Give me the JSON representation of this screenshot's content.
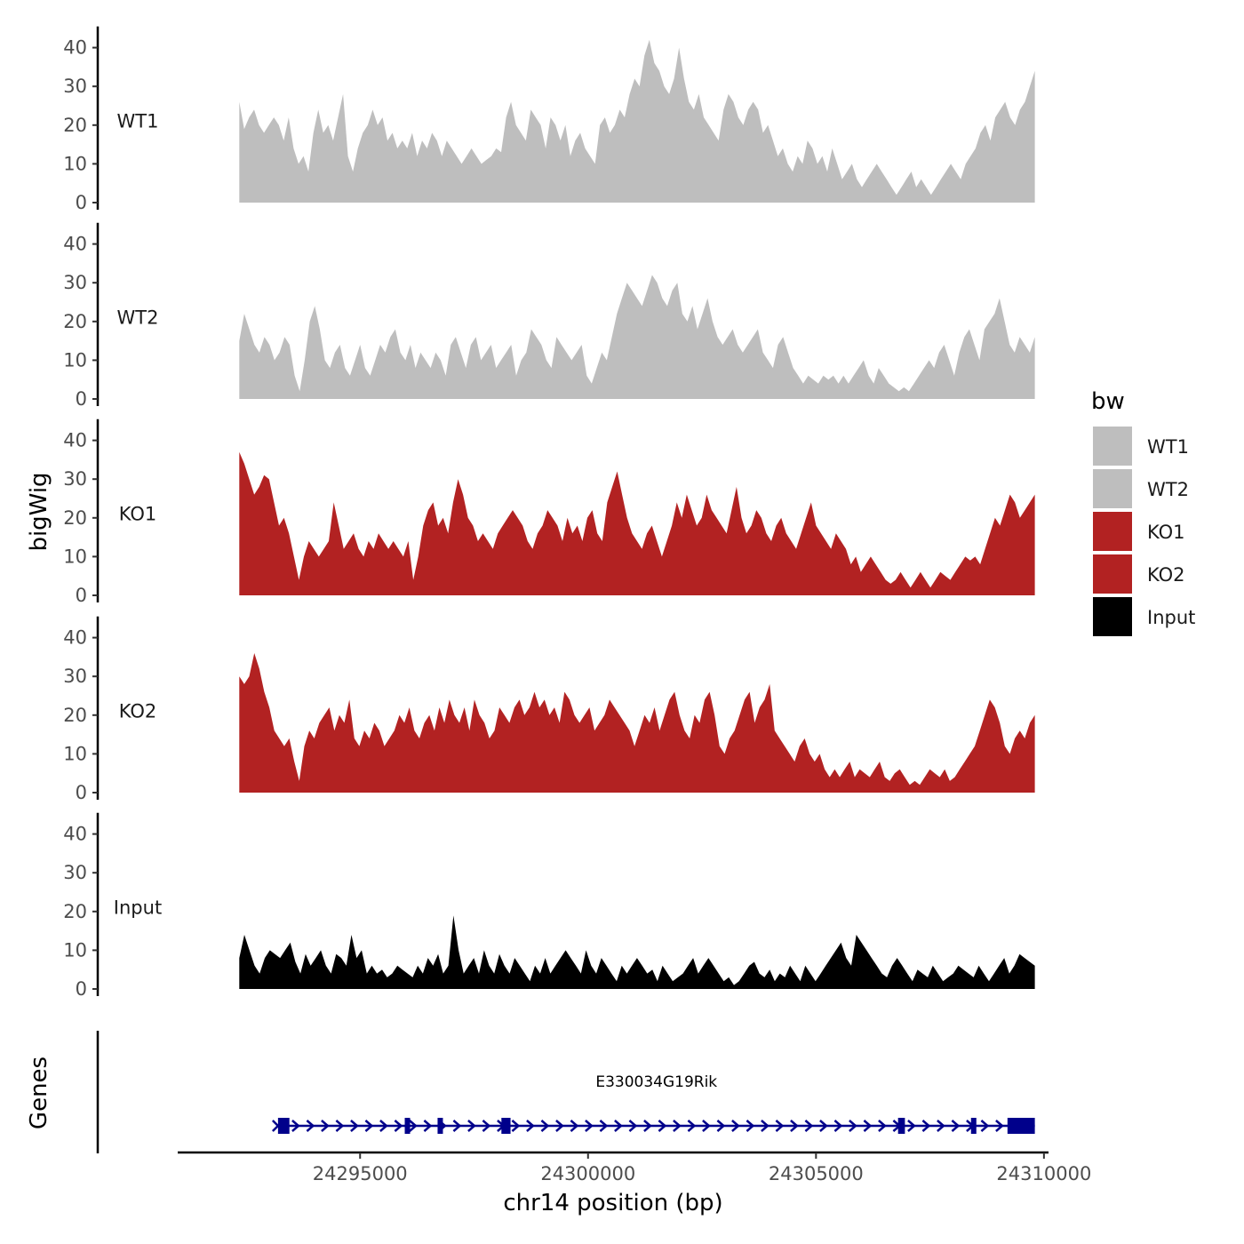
{
  "chart_data": {
    "type": "area",
    "x_axis": {
      "title": "chr14 position (bp)",
      "range": [
        24291000,
        24310100
      ],
      "ticks": [
        24295000,
        24300000,
        24305000,
        24310000
      ],
      "tick_labels": [
        "24295000",
        "24300000",
        "24305000",
        "24310000"
      ]
    },
    "y_axis": {
      "title": "bigWig",
      "range": [
        0,
        45
      ],
      "ticks": [
        0,
        10,
        20,
        30,
        40
      ],
      "tick_labels": [
        "0",
        "10",
        "20",
        "30",
        "40"
      ]
    },
    "tracks_start": 24292350,
    "tracks_end": 24309800,
    "series": [
      {
        "name": "WT1",
        "color": "#bebebe",
        "values": [
          26,
          19,
          22,
          24,
          20,
          18,
          20,
          22,
          20,
          16,
          22,
          14,
          10,
          12,
          8,
          18,
          24,
          18,
          20,
          16,
          22,
          28,
          12,
          8,
          14,
          18,
          20,
          24,
          20,
          22,
          16,
          18,
          14,
          16,
          14,
          18,
          12,
          16,
          14,
          18,
          16,
          12,
          16,
          14,
          12,
          10,
          12,
          14,
          12,
          10,
          11,
          12,
          14,
          13,
          22,
          26,
          20,
          18,
          16,
          24,
          22,
          20,
          14,
          22,
          20,
          16,
          20,
          12,
          16,
          18,
          14,
          12,
          10,
          20,
          22,
          18,
          20,
          24,
          22,
          28,
          32,
          30,
          38,
          42,
          36,
          34,
          30,
          28,
          32,
          40,
          32,
          26,
          24,
          28,
          22,
          20,
          18,
          16,
          24,
          28,
          26,
          22,
          20,
          24,
          26,
          24,
          18,
          20,
          16,
          12,
          14,
          10,
          8,
          12,
          10,
          16,
          14,
          10,
          12,
          8,
          14,
          10,
          6,
          8,
          10,
          6,
          4,
          6,
          8,
          10,
          8,
          6,
          4,
          2,
          4,
          6,
          8,
          4,
          6,
          4,
          2,
          4,
          6,
          8,
          10,
          8,
          6,
          10,
          12,
          14,
          18,
          20,
          16,
          22,
          24,
          26,
          22,
          20,
          24,
          26,
          30,
          34
        ]
      },
      {
        "name": "WT2",
        "color": "#bebebe",
        "values": [
          15,
          22,
          18,
          14,
          12,
          16,
          14,
          10,
          12,
          16,
          14,
          6,
          2,
          10,
          20,
          24,
          18,
          10,
          8,
          12,
          14,
          8,
          6,
          10,
          14,
          8,
          6,
          10,
          14,
          12,
          16,
          18,
          12,
          10,
          14,
          8,
          12,
          10,
          8,
          12,
          10,
          6,
          14,
          16,
          12,
          8,
          14,
          16,
          10,
          12,
          14,
          8,
          10,
          12,
          14,
          6,
          10,
          12,
          18,
          16,
          14,
          10,
          8,
          16,
          14,
          12,
          10,
          12,
          14,
          6,
          4,
          8,
          12,
          10,
          16,
          22,
          26,
          30,
          28,
          26,
          24,
          28,
          32,
          30,
          26,
          24,
          28,
          30,
          22,
          20,
          24,
          18,
          22,
          26,
          20,
          16,
          14,
          16,
          18,
          14,
          12,
          14,
          16,
          18,
          12,
          10,
          8,
          14,
          16,
          12,
          8,
          6,
          4,
          6,
          5,
          4,
          6,
          5,
          6,
          4,
          6,
          4,
          6,
          8,
          10,
          6,
          4,
          8,
          6,
          4,
          3,
          2,
          3,
          2,
          4,
          6,
          8,
          10,
          8,
          12,
          14,
          10,
          6,
          12,
          16,
          18,
          14,
          10,
          18,
          20,
          22,
          26,
          20,
          14,
          12,
          16,
          14,
          12,
          16
        ]
      },
      {
        "name": "KO1",
        "color": "#b22222",
        "values": [
          37,
          34,
          30,
          26,
          28,
          31,
          30,
          24,
          18,
          20,
          16,
          10,
          4,
          10,
          14,
          12,
          10,
          12,
          14,
          24,
          18,
          12,
          14,
          16,
          12,
          10,
          14,
          12,
          16,
          14,
          12,
          14,
          12,
          10,
          14,
          4,
          10,
          18,
          22,
          24,
          18,
          20,
          16,
          24,
          30,
          26,
          20,
          18,
          14,
          16,
          14,
          12,
          16,
          18,
          20,
          22,
          20,
          18,
          14,
          12,
          16,
          18,
          22,
          20,
          18,
          14,
          20,
          16,
          18,
          14,
          20,
          22,
          16,
          14,
          24,
          28,
          32,
          26,
          20,
          16,
          14,
          12,
          16,
          18,
          14,
          10,
          14,
          18,
          24,
          20,
          26,
          22,
          18,
          20,
          26,
          22,
          20,
          18,
          16,
          22,
          28,
          20,
          16,
          18,
          22,
          20,
          16,
          14,
          18,
          20,
          16,
          14,
          12,
          16,
          20,
          24,
          18,
          16,
          14,
          12,
          16,
          14,
          12,
          8,
          10,
          6,
          8,
          10,
          8,
          6,
          4,
          3,
          4,
          6,
          4,
          2,
          4,
          6,
          4,
          2,
          4,
          6,
          5,
          4,
          6,
          8,
          10,
          9,
          10,
          8,
          12,
          16,
          20,
          18,
          22,
          26,
          24,
          20,
          22,
          24,
          26
        ]
      },
      {
        "name": "KO2",
        "color": "#b22222",
        "values": [
          30,
          28,
          30,
          36,
          32,
          26,
          22,
          16,
          14,
          12,
          14,
          8,
          3,
          12,
          16,
          14,
          18,
          20,
          22,
          16,
          20,
          18,
          24,
          14,
          12,
          16,
          14,
          18,
          16,
          12,
          14,
          16,
          20,
          18,
          22,
          16,
          14,
          18,
          20,
          16,
          22,
          18,
          24,
          20,
          18,
          22,
          16,
          24,
          20,
          18,
          14,
          16,
          22,
          20,
          18,
          22,
          24,
          20,
          22,
          26,
          22,
          24,
          20,
          22,
          18,
          26,
          24,
          20,
          18,
          20,
          22,
          16,
          18,
          20,
          24,
          22,
          20,
          18,
          16,
          12,
          16,
          20,
          18,
          22,
          16,
          20,
          24,
          26,
          20,
          16,
          14,
          20,
          18,
          24,
          26,
          20,
          12,
          10,
          14,
          16,
          20,
          24,
          26,
          18,
          22,
          24,
          28,
          16,
          14,
          12,
          10,
          8,
          12,
          14,
          10,
          8,
          10,
          6,
          4,
          6,
          4,
          6,
          8,
          4,
          6,
          5,
          4,
          6,
          8,
          4,
          3,
          5,
          6,
          4,
          2,
          3,
          2,
          4,
          6,
          5,
          4,
          6,
          3,
          4,
          6,
          8,
          10,
          12,
          16,
          20,
          24,
          22,
          18,
          12,
          10,
          14,
          16,
          14,
          18,
          20
        ]
      },
      {
        "name": "Input",
        "color": "#000000",
        "values": [
          8,
          14,
          10,
          6,
          4,
          8,
          10,
          9,
          8,
          10,
          12,
          7,
          4,
          9,
          6,
          8,
          10,
          6,
          4,
          9,
          8,
          6,
          14,
          8,
          10,
          4,
          6,
          4,
          5,
          3,
          4,
          6,
          5,
          4,
          3,
          6,
          4,
          8,
          6,
          9,
          4,
          6,
          19,
          10,
          4,
          6,
          8,
          4,
          10,
          6,
          4,
          9,
          6,
          4,
          8,
          6,
          4,
          2,
          6,
          4,
          8,
          4,
          6,
          8,
          10,
          8,
          6,
          4,
          10,
          6,
          4,
          8,
          6,
          4,
          2,
          6,
          4,
          6,
          8,
          6,
          4,
          5,
          2,
          6,
          4,
          2,
          3,
          4,
          6,
          8,
          4,
          6,
          8,
          6,
          4,
          2,
          3,
          1,
          2,
          4,
          6,
          7,
          4,
          3,
          5,
          2,
          4,
          3,
          6,
          4,
          2,
          6,
          4,
          2,
          4,
          6,
          8,
          10,
          12,
          8,
          6,
          14,
          12,
          10,
          8,
          6,
          4,
          3,
          6,
          8,
          6,
          4,
          2,
          5,
          4,
          3,
          6,
          4,
          2,
          3,
          4,
          6,
          5,
          4,
          3,
          6,
          4,
          2,
          4,
          6,
          8,
          4,
          6,
          9,
          8,
          7,
          6
        ]
      }
    ],
    "legend": {
      "title": "bw",
      "entries": [
        "WT1",
        "WT2",
        "KO1",
        "KO2",
        "Input"
      ],
      "colors": [
        "#bebebe",
        "#bebebe",
        "#b22222",
        "#b22222",
        "#000000"
      ],
      "position": "right"
    },
    "genes_track": {
      "title": "Genes",
      "color": "#00008b",
      "gene": {
        "name": "E330034G19Rik",
        "strand": "+",
        "start": 24293200,
        "end": 24309800,
        "exons": [
          [
            24293200,
            24293450
          ],
          [
            24295980,
            24296080
          ],
          [
            24296700,
            24296800
          ],
          [
            24298100,
            24298300
          ],
          [
            24306800,
            24306950
          ],
          [
            24308400,
            24308480
          ],
          [
            24309200,
            24309800
          ]
        ]
      }
    }
  }
}
